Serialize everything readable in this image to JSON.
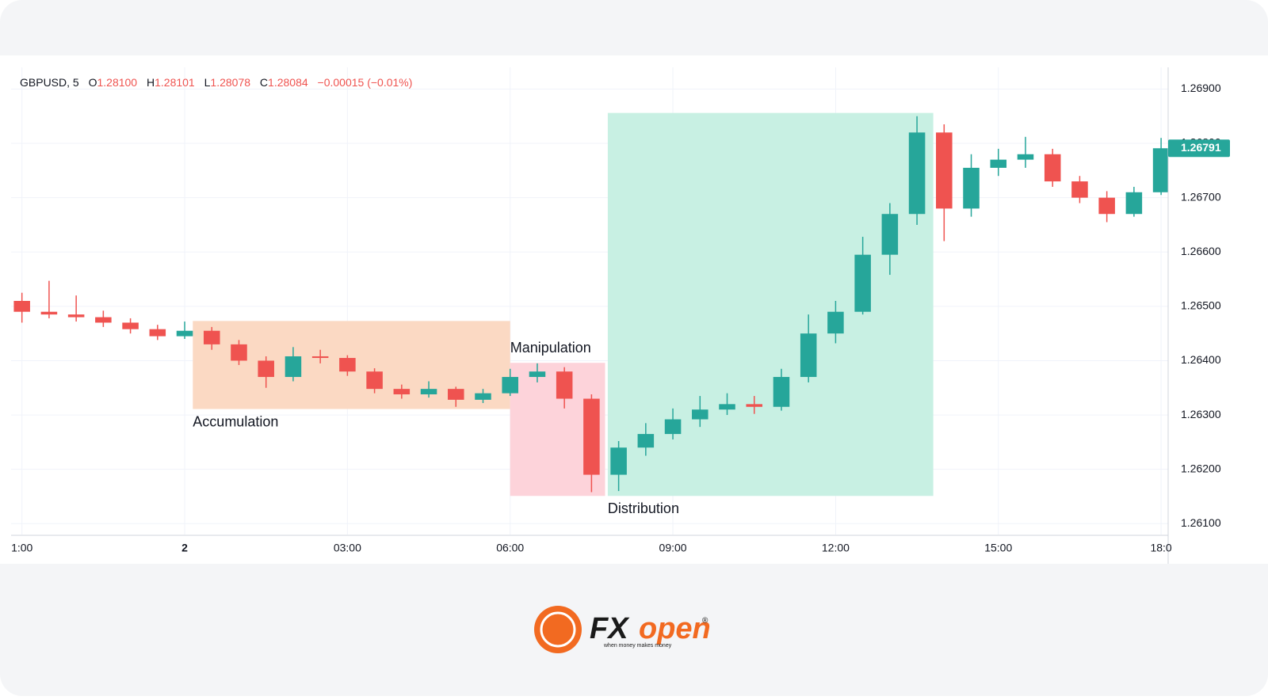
{
  "chart_data": {
    "type": "candlestick",
    "header": {
      "symbol": "GBPUSD, 5",
      "o_label": "O",
      "o": "1.28100",
      "h_label": "H",
      "h": "1.28101",
      "l_label": "L",
      "l": "1.28078",
      "c_label": "C",
      "c": "1.28084",
      "change": "−0.00015 (−0.01%)"
    },
    "x": [
      -3,
      -2.5,
      -2,
      -1.5,
      -1,
      -0.5,
      0,
      0.5,
      1,
      1.5,
      2,
      2.5,
      3,
      3.5,
      4,
      4.5,
      5,
      5.5,
      6,
      6.5,
      7,
      7.5,
      8,
      8.5,
      9,
      9.5,
      10,
      10.5,
      11,
      11.5,
      12,
      12.5,
      13,
      13.5,
      14,
      14.5,
      15,
      15.5,
      16,
      16.5,
      17,
      17.5,
      18
    ],
    "open": [
      1.2651,
      1.2649,
      1.26485,
      1.2648,
      1.2647,
      1.26458,
      1.26445,
      1.26455,
      1.2643,
      1.264,
      1.2637,
      1.26408,
      1.26405,
      1.2638,
      1.26348,
      1.26338,
      1.26348,
      1.26328,
      1.2634,
      1.2637,
      1.2638,
      1.2633,
      1.2619,
      1.2624,
      1.26265,
      1.26292,
      1.2631,
      1.2632,
      1.26315,
      1.2637,
      1.2645,
      1.2649,
      1.26595,
      1.2667,
      1.2682,
      1.2668,
      1.26755,
      1.2677,
      1.2678,
      1.2673,
      1.267,
      1.2667,
      1.2671
    ],
    "high": [
      1.26525,
      1.26547,
      1.2652,
      1.26492,
      1.26478,
      1.26466,
      1.26472,
      1.26462,
      1.26438,
      1.26408,
      1.26425,
      1.2642,
      1.2641,
      1.26386,
      1.26356,
      1.26362,
      1.26352,
      1.26348,
      1.26385,
      1.26395,
      1.26388,
      1.26338,
      1.26252,
      1.26285,
      1.26312,
      1.26335,
      1.2634,
      1.26335,
      1.26385,
      1.26485,
      1.2651,
      1.26628,
      1.2669,
      1.2685,
      1.26835,
      1.2678,
      1.2679,
      1.26812,
      1.2679,
      1.2674,
      1.26712,
      1.2672,
      1.2681
    ],
    "low": [
      1.2647,
      1.26478,
      1.26472,
      1.26462,
      1.2645,
      1.26438,
      1.2644,
      1.2642,
      1.26392,
      1.2635,
      1.26362,
      1.26395,
      1.26372,
      1.2634,
      1.2633,
      1.26332,
      1.26315,
      1.26322,
      1.26335,
      1.2636,
      1.26312,
      1.26158,
      1.2616,
      1.26225,
      1.26255,
      1.26278,
      1.263,
      1.26302,
      1.26308,
      1.2636,
      1.26432,
      1.26485,
      1.26558,
      1.2665,
      1.2662,
      1.26665,
      1.2674,
      1.26755,
      1.2672,
      1.2669,
      1.26655,
      1.26665,
      1.26705
    ],
    "close": [
      1.2649,
      1.26485,
      1.2648,
      1.2647,
      1.26458,
      1.26445,
      1.26455,
      1.2643,
      1.264,
      1.2637,
      1.26408,
      1.26405,
      1.2638,
      1.26348,
      1.26338,
      1.26348,
      1.26328,
      1.2634,
      1.2637,
      1.2638,
      1.2633,
      1.2619,
      1.2624,
      1.26265,
      1.26292,
      1.2631,
      1.2632,
      1.26315,
      1.2637,
      1.2645,
      1.2649,
      1.26595,
      1.2667,
      1.2682,
      1.2668,
      1.26755,
      1.2677,
      1.2678,
      1.2673,
      1.267,
      1.2667,
      1.2671,
      1.26791
    ],
    "up_color": "#26a69a",
    "down_color": "#ef5350",
    "last_price": 1.26791,
    "xlim": [
      -3.2,
      18.13
    ],
    "xticks": [
      {
        "value": -3,
        "label": "1:00"
      },
      {
        "value": 0,
        "label": "2"
      },
      {
        "value": 3,
        "label": "03:00"
      },
      {
        "value": 6,
        "label": "06:00"
      },
      {
        "value": 9,
        "label": "09:00"
      },
      {
        "value": 12,
        "label": "12:00"
      },
      {
        "value": 15,
        "label": "15:00"
      },
      {
        "value": 18,
        "label": "18:0"
      }
    ],
    "ylim": [
      1.2608,
      1.2694
    ],
    "yticks": [
      {
        "value": 1.261,
        "label": "1.26100"
      },
      {
        "value": 1.262,
        "label": "1.26200"
      },
      {
        "value": 1.263,
        "label": "1.26300"
      },
      {
        "value": 1.264,
        "label": "1.26400"
      },
      {
        "value": 1.265,
        "label": "1.26500"
      },
      {
        "value": 1.266,
        "label": "1.26600"
      },
      {
        "value": 1.267,
        "label": "1.26700"
      },
      {
        "value": 1.268,
        "label": "1.26800"
      },
      {
        "value": 1.269,
        "label": "1.26900"
      }
    ],
    "grid": true,
    "zones": [
      {
        "label": "Accumulation",
        "x": [
          0.15,
          6.0
        ],
        "y": [
          1.26311,
          1.26473
        ],
        "color": "#fbd9c3",
        "label_pos": "below"
      },
      {
        "label": "Manipulation",
        "x": [
          6.0,
          7.75
        ],
        "y": [
          1.26151,
          1.26396
        ],
        "color": "#fdd3da",
        "label_pos": "above"
      },
      {
        "label": "Distribution",
        "x": [
          7.8,
          13.8
        ],
        "y": [
          1.26151,
          1.26856
        ],
        "color": "#c8f0e3",
        "label_pos": "below"
      }
    ]
  },
  "footer": {
    "brand_a": "FX",
    "brand_b": "open",
    "registered": "®",
    "tagline": "when money makes money"
  }
}
